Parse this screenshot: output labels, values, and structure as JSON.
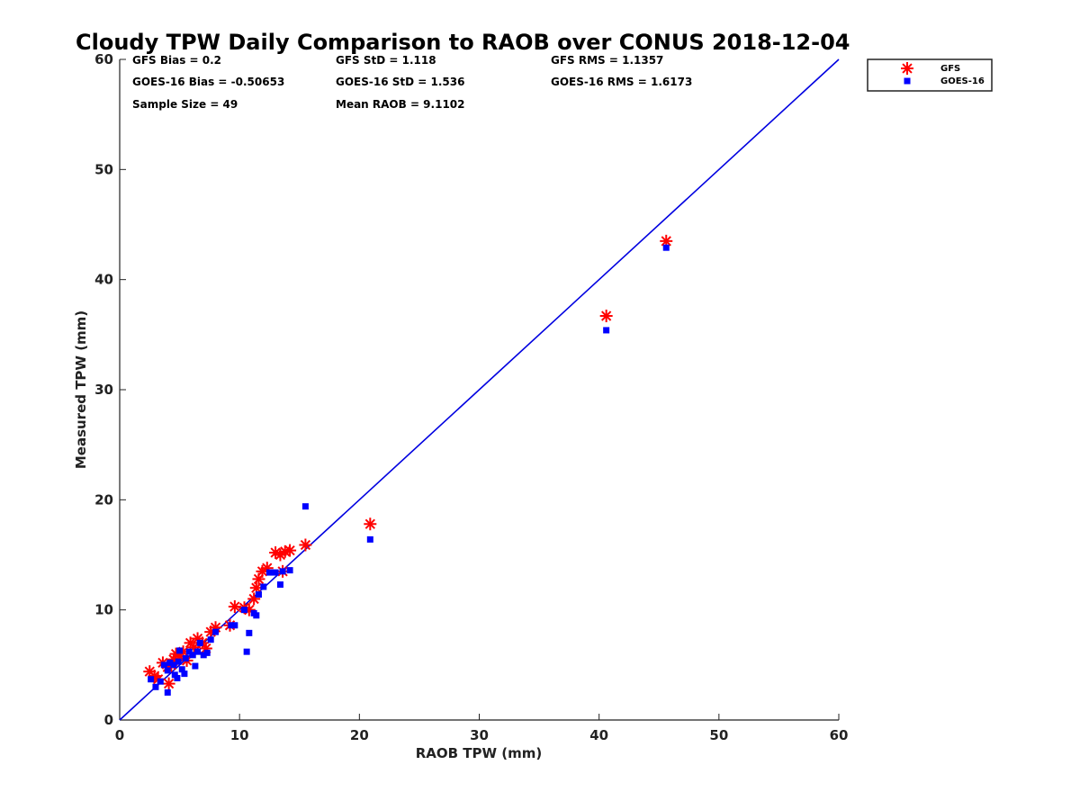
{
  "chart_data": {
    "type": "scatter",
    "title": "Cloudy TPW Daily Comparison to RAOB over CONUS 2018-12-04",
    "xlabel": "RAOB TPW (mm)",
    "ylabel": "Measured TPW (mm)",
    "xlim": [
      0,
      60
    ],
    "ylim": [
      0,
      60
    ],
    "xticks": [
      "0",
      "10",
      "20",
      "30",
      "40",
      "50",
      "60"
    ],
    "yticks": [
      "0",
      "10",
      "20",
      "30",
      "40",
      "50",
      "60"
    ],
    "grid": false,
    "legend_position": "top-right, outside plot area",
    "reference_line": {
      "type": "one-to-one",
      "color": "#0000e0"
    },
    "stats": {
      "gfs_bias": "GFS Bias = 0.2",
      "goes_bias": "GOES-16 Bias = -0.50653",
      "sample_size": "Sample Size = 49",
      "gfs_std": "GFS StD = 1.118",
      "goes_std": "GOES-16 StD = 1.536",
      "mean_raob": "Mean RAOB = 9.1102",
      "gfs_rms": "GFS RMS = 1.1357",
      "goes_rms": "GOES-16 RMS = 1.6173"
    },
    "series": [
      {
        "name": "GFS",
        "marker": "asterisk",
        "color": "#ff0000",
        "points": [
          [
            2.5,
            4.4
          ],
          [
            2.9,
            4.0
          ],
          [
            3.2,
            3.7
          ],
          [
            3.6,
            5.2
          ],
          [
            4.0,
            4.8
          ],
          [
            4.1,
            3.3
          ],
          [
            4.3,
            5.0
          ],
          [
            4.5,
            5.5
          ],
          [
            4.7,
            6.0
          ],
          [
            5.0,
            5.8
          ],
          [
            5.3,
            6.2
          ],
          [
            5.6,
            5.4
          ],
          [
            5.9,
            7.0
          ],
          [
            6.2,
            6.6
          ],
          [
            6.5,
            7.4
          ],
          [
            6.9,
            7.0
          ],
          [
            7.2,
            6.5
          ],
          [
            7.6,
            8.0
          ],
          [
            8.0,
            8.4
          ],
          [
            9.2,
            8.6
          ],
          [
            9.6,
            10.3
          ],
          [
            10.4,
            10.2
          ],
          [
            10.8,
            10.0
          ],
          [
            11.2,
            11.0
          ],
          [
            11.4,
            12.0
          ],
          [
            11.6,
            12.8
          ],
          [
            11.9,
            13.5
          ],
          [
            12.3,
            13.8
          ],
          [
            13.0,
            15.2
          ],
          [
            13.4,
            15.0
          ],
          [
            13.6,
            13.5
          ],
          [
            13.8,
            15.3
          ],
          [
            14.2,
            15.4
          ],
          [
            15.5,
            15.9
          ],
          [
            20.9,
            17.8
          ],
          [
            40.6,
            36.7
          ],
          [
            45.6,
            43.5
          ]
        ]
      },
      {
        "name": "GOES-16",
        "marker": "square",
        "color": "#0000ff",
        "points": [
          [
            2.6,
            3.7
          ],
          [
            3.0,
            3.0
          ],
          [
            3.4,
            3.5
          ],
          [
            3.7,
            5.0
          ],
          [
            4.0,
            4.5
          ],
          [
            4.0,
            2.5
          ],
          [
            4.2,
            5.2
          ],
          [
            4.5,
            5.0
          ],
          [
            4.6,
            4.1
          ],
          [
            4.8,
            3.8
          ],
          [
            4.9,
            5.3
          ],
          [
            5.0,
            6.3
          ],
          [
            5.2,
            4.6
          ],
          [
            5.4,
            4.2
          ],
          [
            5.5,
            5.6
          ],
          [
            5.8,
            6.2
          ],
          [
            6.1,
            5.9
          ],
          [
            6.3,
            4.9
          ],
          [
            6.5,
            6.2
          ],
          [
            6.7,
            7.0
          ],
          [
            7.0,
            5.9
          ],
          [
            7.3,
            6.1
          ],
          [
            7.6,
            7.3
          ],
          [
            8.0,
            8.0
          ],
          [
            9.3,
            8.6
          ],
          [
            9.6,
            8.6
          ],
          [
            10.4,
            10.0
          ],
          [
            10.6,
            6.2
          ],
          [
            10.8,
            7.9
          ],
          [
            11.2,
            9.7
          ],
          [
            11.4,
            9.5
          ],
          [
            11.6,
            11.4
          ],
          [
            12.0,
            12.1
          ],
          [
            12.5,
            13.4
          ],
          [
            13.0,
            13.4
          ],
          [
            13.4,
            12.3
          ],
          [
            13.6,
            13.5
          ],
          [
            14.2,
            13.6
          ],
          [
            15.5,
            19.4
          ],
          [
            20.9,
            16.4
          ],
          [
            40.6,
            35.4
          ],
          [
            45.6,
            42.9
          ]
        ]
      }
    ]
  }
}
